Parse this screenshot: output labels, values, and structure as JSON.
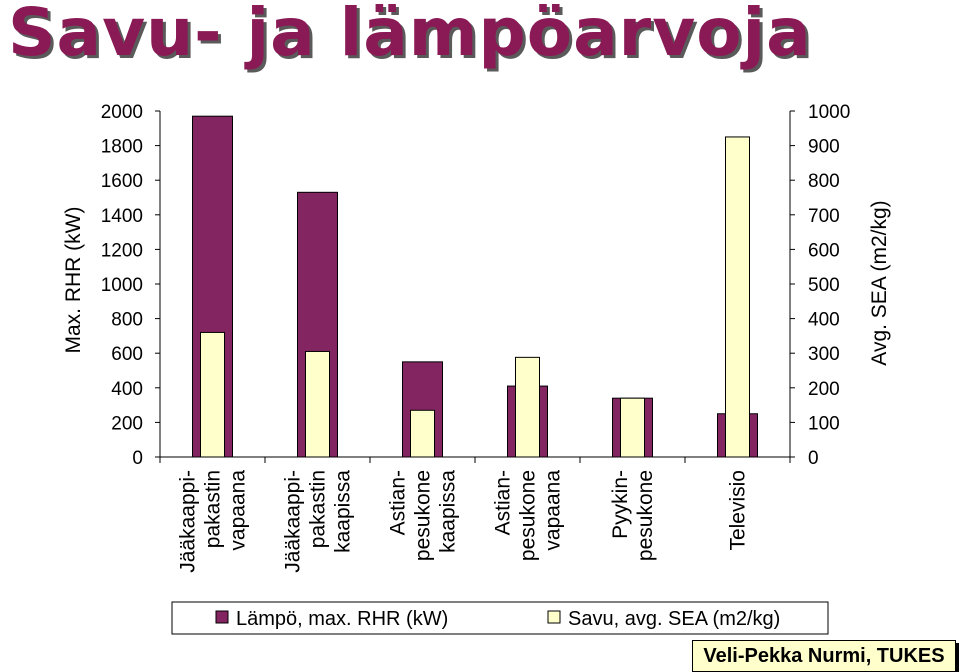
{
  "title": "Savu- ja lämpöarvoja",
  "credit": "Veli-Pekka Nurmi, TUKES",
  "colors": {
    "heat": "#832561",
    "smoke": "#ffffcc",
    "title": "#8a1a55"
  },
  "chart_data": {
    "type": "bar",
    "categories": [
      [
        "Jääkaappi-",
        "pakastin",
        "vapaana"
      ],
      [
        "Jääkaappi-",
        "pakastin",
        "kaapissa"
      ],
      [
        "Astian-",
        "pesukone",
        "kaapissa"
      ],
      [
        "Astian-",
        "pesukone",
        "vapaana"
      ],
      [
        "Pyykin-",
        "pesukone"
      ],
      [
        "Televisio"
      ]
    ],
    "series": [
      {
        "name": "Lämpö, max. RHR (kW)",
        "axis": "left",
        "color": "#832561",
        "values": [
          1970,
          1530,
          550,
          410,
          340,
          250
        ]
      },
      {
        "name": "Savu, avg. SEA (m2/kg)",
        "axis": "right",
        "color": "#ffffcc",
        "values": [
          360,
          305,
          135,
          288,
          170,
          925
        ]
      }
    ],
    "ylabel": "Max. RHR (kW)",
    "y2label": "Avg. SEA (m2/kg)",
    "ylim": [
      0,
      2000
    ],
    "y2lim": [
      0,
      1000
    ],
    "yticks": [
      "0",
      "200",
      "400",
      "600",
      "800",
      "1000",
      "1200",
      "1400",
      "1600",
      "1800",
      "2000"
    ],
    "y2ticks": [
      "0",
      "100",
      "200",
      "300",
      "400",
      "500",
      "600",
      "700",
      "800",
      "900",
      "1000"
    ],
    "grid": false,
    "legend": "bottom"
  }
}
